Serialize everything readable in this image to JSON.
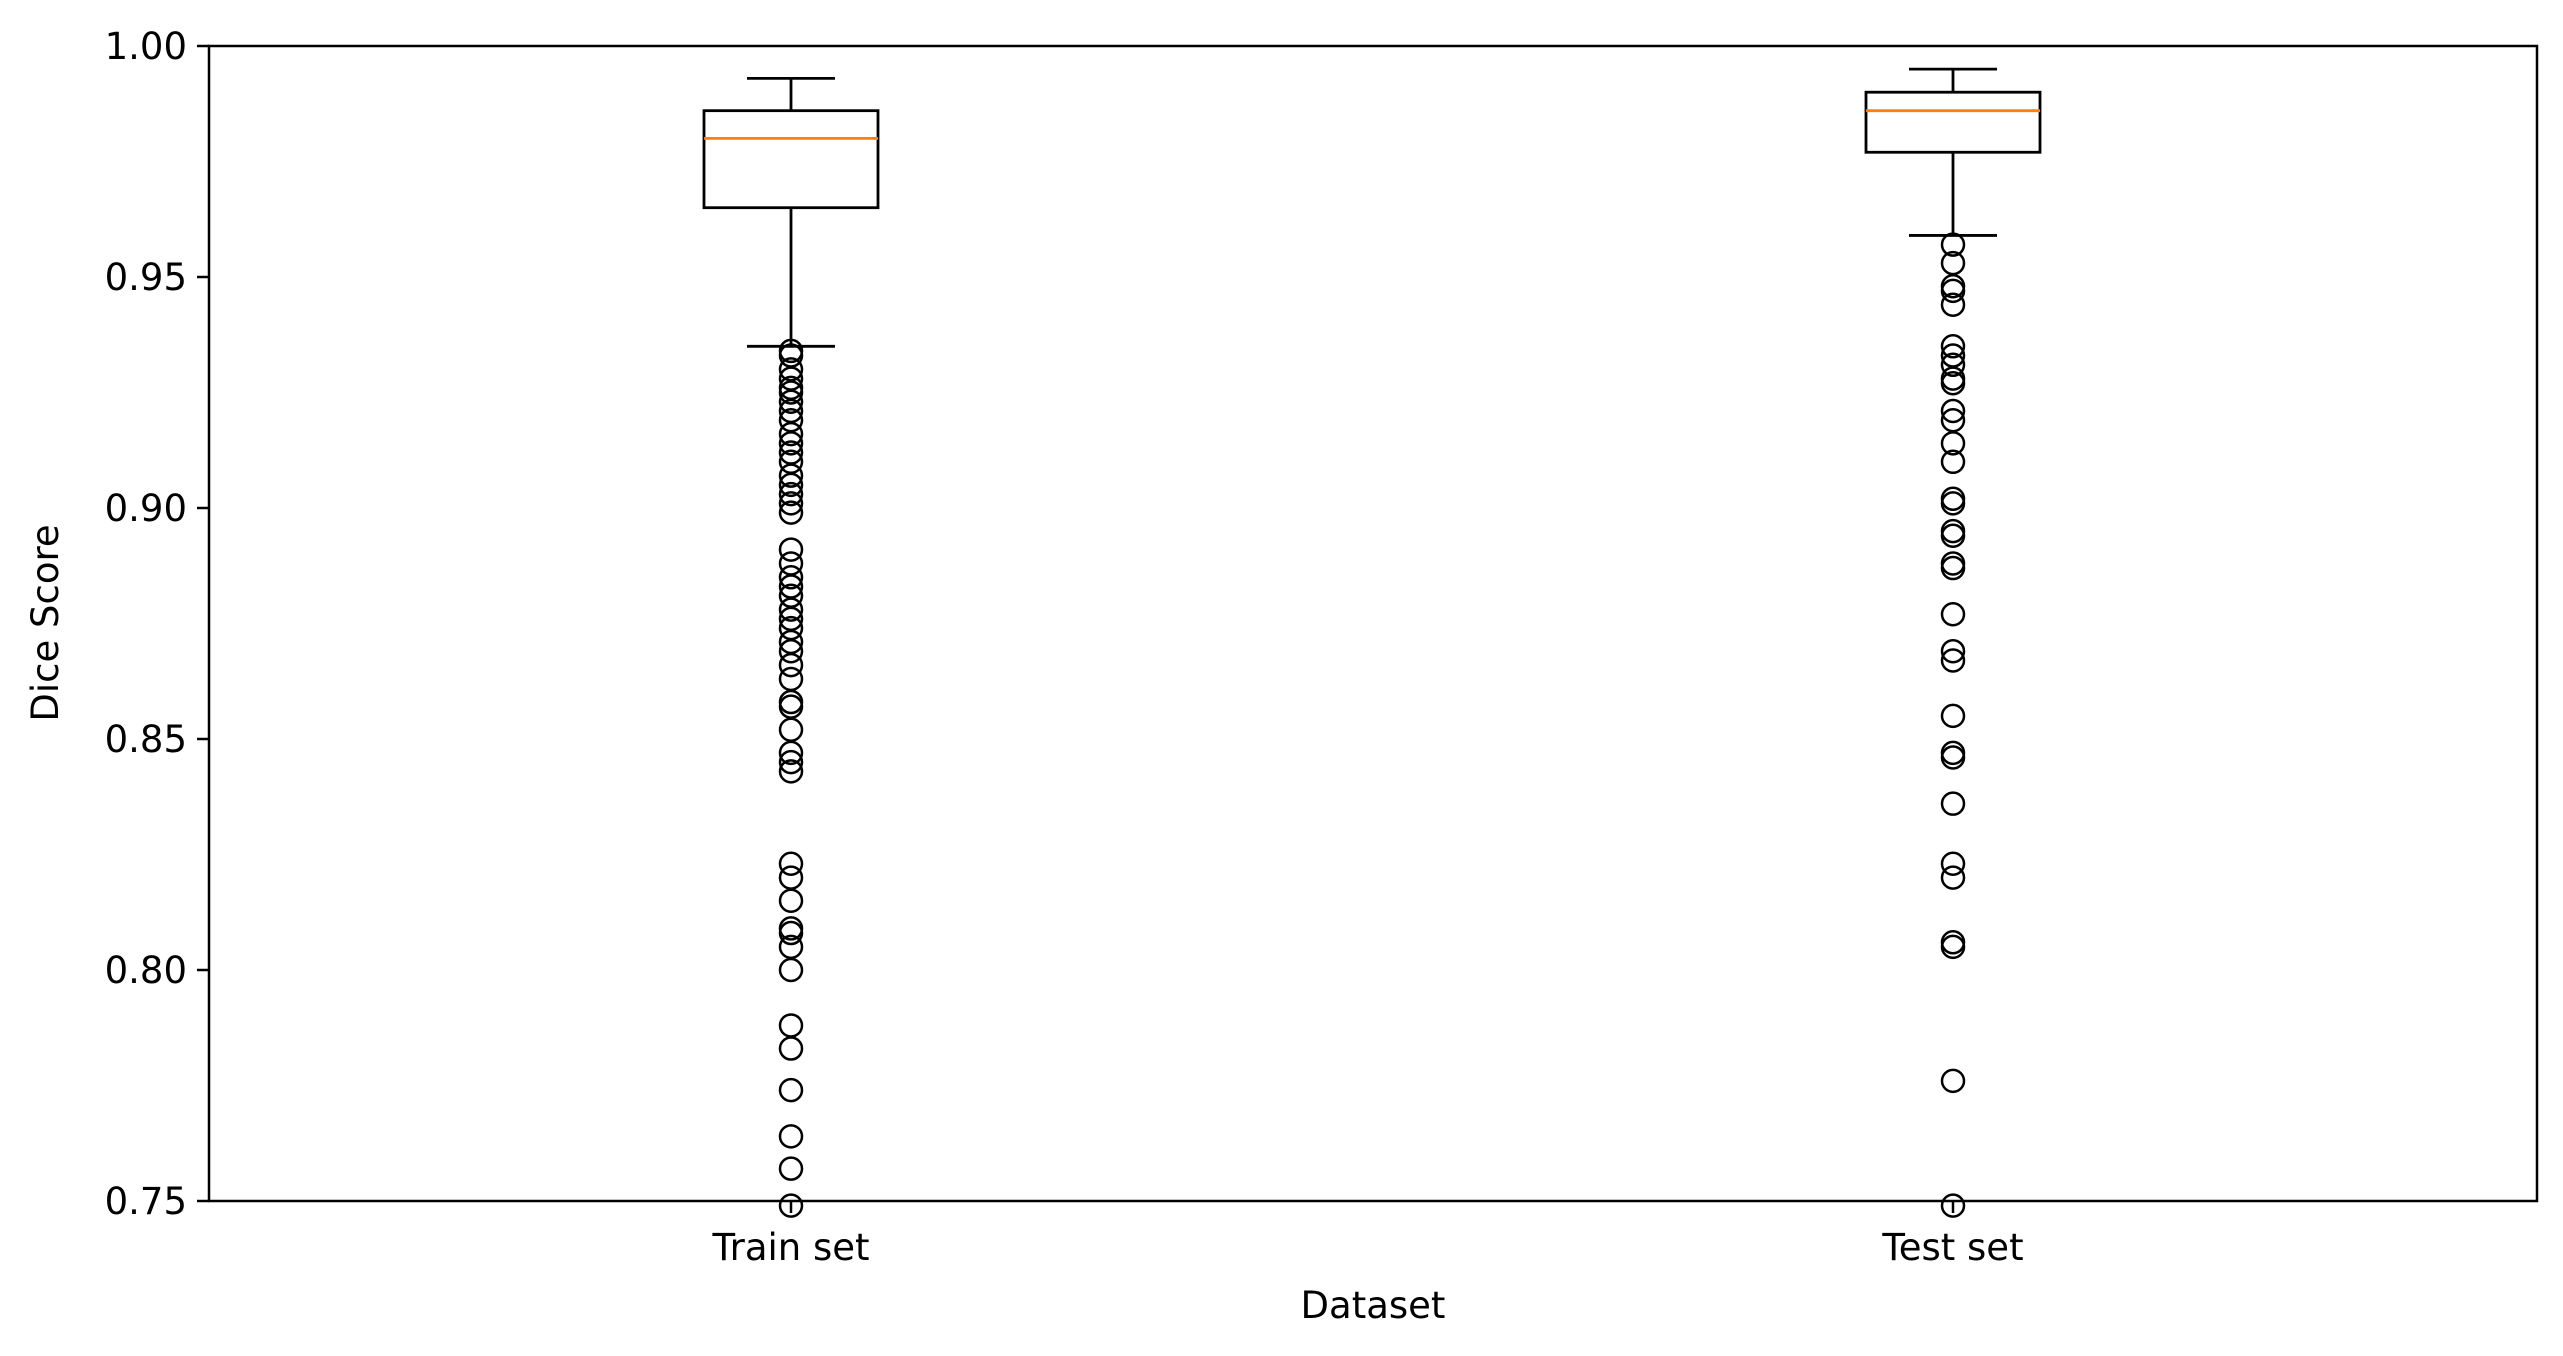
{
  "chart_data": {
    "type": "box",
    "title": "",
    "xlabel": "Dataset",
    "ylabel": "Dice Score",
    "ylim": [
      0.75,
      1.0
    ],
    "yticks": [
      0.75,
      0.8,
      0.85,
      0.9,
      0.95,
      1.0
    ],
    "ytick_labels": [
      "0.75",
      "0.80",
      "0.85",
      "0.90",
      "0.95",
      "1.00"
    ],
    "grid": false,
    "categories": [
      "Train set",
      "Test set"
    ],
    "boxes": [
      {
        "name": "Train set",
        "whisker_low": 0.935,
        "q1": 0.965,
        "median": 0.98,
        "q3": 0.986,
        "whisker_high": 0.993,
        "outliers": [
          0.934,
          0.933,
          0.93,
          0.928,
          0.926,
          0.925,
          0.923,
          0.921,
          0.919,
          0.916,
          0.914,
          0.912,
          0.91,
          0.907,
          0.905,
          0.903,
          0.901,
          0.899,
          0.891,
          0.888,
          0.885,
          0.883,
          0.881,
          0.878,
          0.876,
          0.874,
          0.871,
          0.869,
          0.866,
          0.863,
          0.858,
          0.857,
          0.852,
          0.847,
          0.845,
          0.843,
          0.823,
          0.82,
          0.815,
          0.809,
          0.808,
          0.805,
          0.8,
          0.788,
          0.783,
          0.774,
          0.764,
          0.757,
          0.749
        ]
      },
      {
        "name": "Test set",
        "whisker_low": 0.959,
        "q1": 0.977,
        "median": 0.986,
        "q3": 0.99,
        "whisker_high": 0.995,
        "outliers": [
          0.957,
          0.953,
          0.948,
          0.947,
          0.944,
          0.935,
          0.933,
          0.931,
          0.928,
          0.927,
          0.921,
          0.919,
          0.914,
          0.91,
          0.902,
          0.901,
          0.895,
          0.894,
          0.888,
          0.887,
          0.877,
          0.869,
          0.867,
          0.855,
          0.847,
          0.846,
          0.836,
          0.823,
          0.82,
          0.806,
          0.805,
          0.776,
          0.749
        ]
      }
    ],
    "colors": {
      "box": "#000000",
      "median": "#ff7f0e",
      "outlier": "#000000"
    }
  }
}
